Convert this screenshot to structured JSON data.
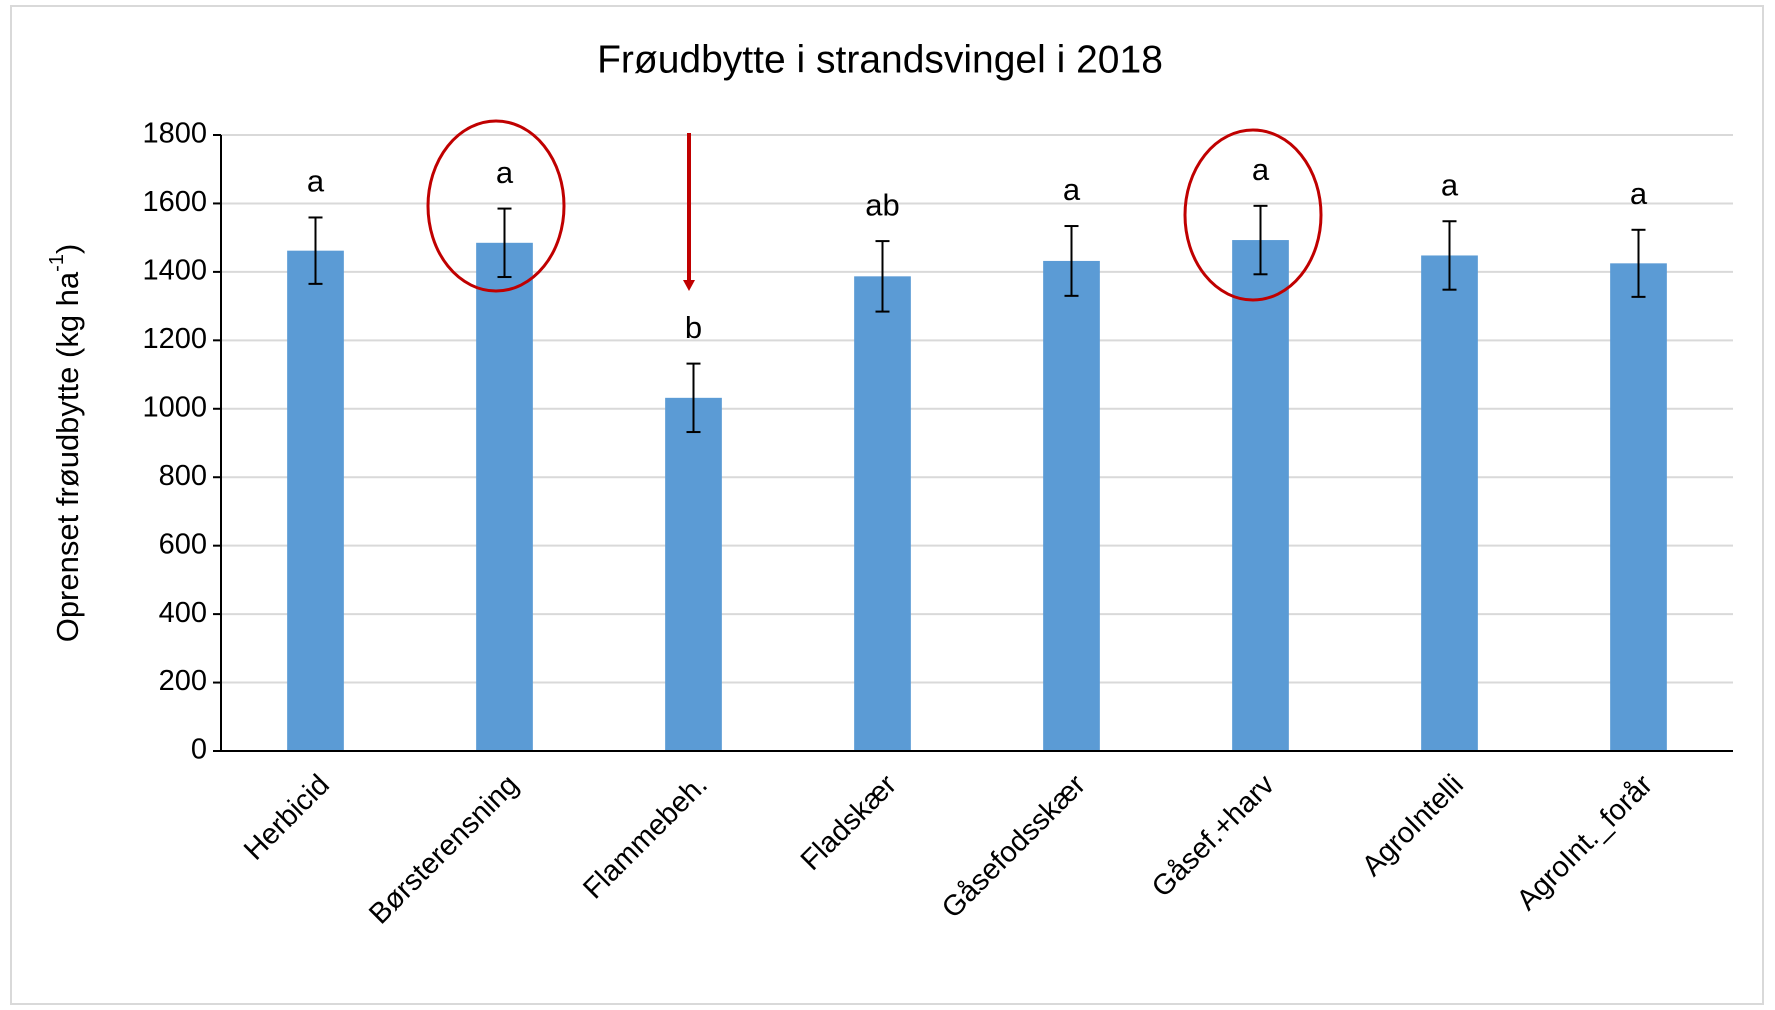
{
  "chart_data": {
    "type": "bar",
    "title": "Frøudbytte i strandsvingel i 2018",
    "ylabel": {
      "text": "Oprenset frøudbytte  (kg ha",
      "sup": "-1",
      "end": ")"
    },
    "categories": [
      "Herbicid",
      "Børsterensning",
      "Flammebeh.",
      "Fladskær",
      "Gåsefodsskær",
      "Gåsef.+harv",
      "AgroIntelli",
      "AgroInt._forår"
    ],
    "values": [
      1462,
      1485,
      1032,
      1387,
      1432,
      1493,
      1448,
      1425
    ],
    "errors": [
      97,
      100,
      100,
      103,
      102,
      100,
      100,
      98
    ],
    "group_labels": [
      "a",
      "a",
      "b",
      "ab",
      "a",
      "a",
      "a",
      "a"
    ],
    "color": "#5b9bd5",
    "ylim": [
      0,
      1800
    ],
    "yticks": [
      0,
      200,
      400,
      600,
      800,
      1000,
      1200,
      1400,
      1600,
      1800
    ],
    "grid": true
  }
}
